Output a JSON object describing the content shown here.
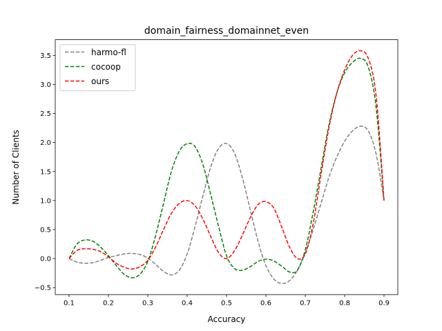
{
  "chart_data": {
    "type": "line",
    "title": "domain_fairness_domainnet_even",
    "xlabel": "Accuracy",
    "ylabel": "Number of Clients",
    "xlim": [
      0.065,
      0.935
    ],
    "ylim": [
      -0.62,
      3.77
    ],
    "x_ticks": [
      "0.1",
      "0.2",
      "0.3",
      "0.4",
      "0.5",
      "0.6",
      "0.7",
      "0.8",
      "0.9"
    ],
    "y_ticks": [
      "−0.5",
      "0.0",
      "0.5",
      "1.0",
      "1.5",
      "2.0",
      "2.5",
      "3.0",
      "3.5"
    ],
    "legend_position": "top-left",
    "grid": false,
    "x": [
      0.1,
      0.12,
      0.14,
      0.16,
      0.18,
      0.2,
      0.22,
      0.24,
      0.26,
      0.28,
      0.3,
      0.32,
      0.34,
      0.36,
      0.38,
      0.4,
      0.42,
      0.44,
      0.46,
      0.48,
      0.5,
      0.52,
      0.54,
      0.56,
      0.58,
      0.6,
      0.62,
      0.64,
      0.66,
      0.68,
      0.7,
      0.72,
      0.74,
      0.76,
      0.78,
      0.8,
      0.82,
      0.84,
      0.86,
      0.88,
      0.9
    ],
    "series": [
      {
        "name": "harmo-fl",
        "color": "#808080",
        "values": [
          0.0,
          -0.06,
          -0.08,
          -0.07,
          -0.03,
          0.02,
          0.05,
          0.08,
          0.09,
          0.07,
          0.01,
          -0.1,
          -0.22,
          -0.28,
          -0.2,
          0.08,
          0.55,
          1.08,
          1.58,
          1.9,
          1.98,
          1.82,
          1.4,
          0.85,
          0.3,
          -0.12,
          -0.35,
          -0.43,
          -0.38,
          -0.2,
          0.1,
          0.5,
          0.95,
          1.4,
          1.75,
          2.02,
          2.2,
          2.28,
          2.2,
          1.8,
          1.0
        ]
      },
      {
        "name": "cocoop",
        "color": "#008000",
        "values": [
          0.0,
          0.25,
          0.32,
          0.3,
          0.2,
          0.05,
          -0.12,
          -0.27,
          -0.33,
          -0.27,
          -0.05,
          0.4,
          0.95,
          1.5,
          1.85,
          1.98,
          1.93,
          1.62,
          1.1,
          0.55,
          0.05,
          -0.17,
          -0.2,
          -0.14,
          -0.05,
          -0.01,
          -0.04,
          -0.13,
          -0.23,
          -0.2,
          0.15,
          0.8,
          1.55,
          2.3,
          2.85,
          3.2,
          3.38,
          3.45,
          3.3,
          2.6,
          1.0
        ]
      },
      {
        "name": "ours",
        "color": "#ff0000",
        "values": [
          0.0,
          0.14,
          0.17,
          0.16,
          0.12,
          0.03,
          -0.08,
          -0.15,
          -0.18,
          -0.14,
          -0.03,
          0.2,
          0.5,
          0.78,
          0.95,
          1.0,
          0.91,
          0.68,
          0.38,
          0.1,
          0.0,
          0.13,
          0.4,
          0.7,
          0.93,
          0.98,
          0.87,
          0.55,
          0.2,
          0.0,
          0.08,
          0.6,
          1.45,
          2.25,
          2.85,
          3.25,
          3.5,
          3.58,
          3.45,
          2.8,
          1.0
        ]
      }
    ]
  }
}
